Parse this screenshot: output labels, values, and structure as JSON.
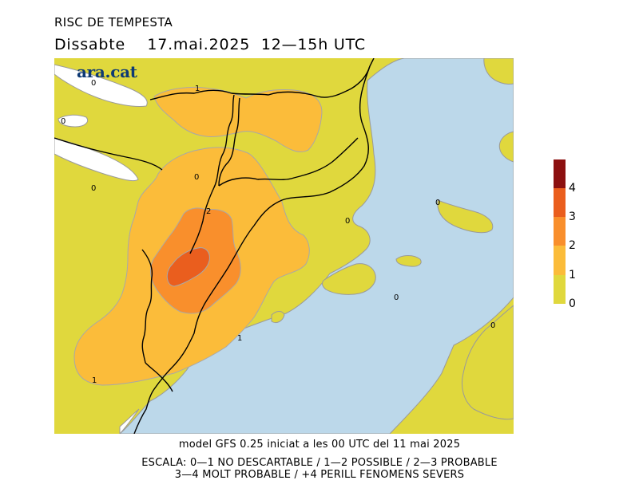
{
  "header": {
    "title": "RISC DE TEMPESTA",
    "day": "Dissabte",
    "date": "17.mai.2025",
    "hours": "12—15h UTC"
  },
  "logo": {
    "text": "ara.cat",
    "color": "#0e3a74"
  },
  "colors": {
    "sea": "#bcd8ea",
    "land_0": "#e0d83d",
    "level_1": "#fbbc3a",
    "level_2": "#f98f2c",
    "level_3": "#ea5e1e",
    "level_4": "#8c1010",
    "snow": "#ffffff",
    "border": "#000000"
  },
  "legend": {
    "labels": [
      "4",
      "3",
      "2",
      "1",
      "0"
    ]
  },
  "map_labels": {
    "zero": "0",
    "one": "1",
    "two": "2"
  },
  "footer": {
    "line1": "model GFS 0.25 iniciat a les 00 UTC del 11 mai 2025",
    "line2": "ESCALA: 0—1 NO DESCARTABLE / 1—2 POSSIBLE / 2—3 PROBABLE",
    "line3": "3—4 MOLT PROBABLE / +4 PERILL FENOMENS SEVERS"
  }
}
